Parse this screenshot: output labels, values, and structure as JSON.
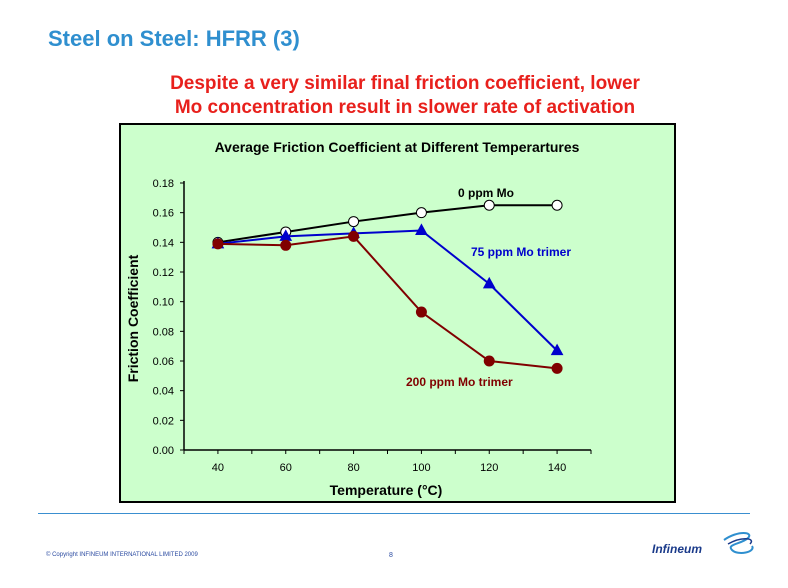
{
  "slide": {
    "title": "Steel on Steel: HFRR (3)",
    "subtitle_line1": "Despite a very similar final friction coefficient, lower",
    "subtitle_line2": "Mo concentration result in slower rate of activation"
  },
  "footer": {
    "copyright": "© Copyright INFINEUM INTERNATIONAL LIMITED 2009",
    "page_number": "8",
    "logo_text": "Infineum"
  },
  "colors": {
    "title": "#2f8fcf",
    "subtitle": "#e8201c",
    "chart_bg": "#ccffcc",
    "series_0ppm": "#000000",
    "series_75ppm": "#0000cc",
    "series_200ppm": "#800000"
  },
  "chart_data": {
    "type": "line",
    "title": "Average Friction Coefficient at Different Temperartures",
    "xlabel": "Temperature (°C)",
    "ylabel": "Friction Coefficient",
    "x": [
      40,
      60,
      80,
      100,
      120,
      140
    ],
    "xlim": [
      30,
      150
    ],
    "ylim": [
      0,
      0.18
    ],
    "x_ticks": [
      "40",
      "60",
      "80",
      "100",
      "120",
      "140"
    ],
    "y_ticks": [
      "0.00",
      "0.02",
      "0.04",
      "0.06",
      "0.08",
      "0.10",
      "0.12",
      "0.14",
      "0.16",
      "0.18"
    ],
    "grid": false,
    "legend": "none",
    "series": [
      {
        "name": "0 ppm Mo",
        "marker": "circle-open",
        "color": "#000000",
        "values": [
          0.14,
          0.147,
          0.154,
          0.16,
          0.165,
          0.165
        ]
      },
      {
        "name": "75 ppm Mo trimer",
        "marker": "triangle",
        "color": "#0000cc",
        "values": [
          0.139,
          0.144,
          0.146,
          0.148,
          0.112,
          0.067
        ]
      },
      {
        "name": "200 ppm Mo trimer",
        "marker": "circle",
        "color": "#800000",
        "values": [
          0.139,
          0.138,
          0.144,
          0.093,
          0.06,
          0.055
        ]
      }
    ]
  }
}
